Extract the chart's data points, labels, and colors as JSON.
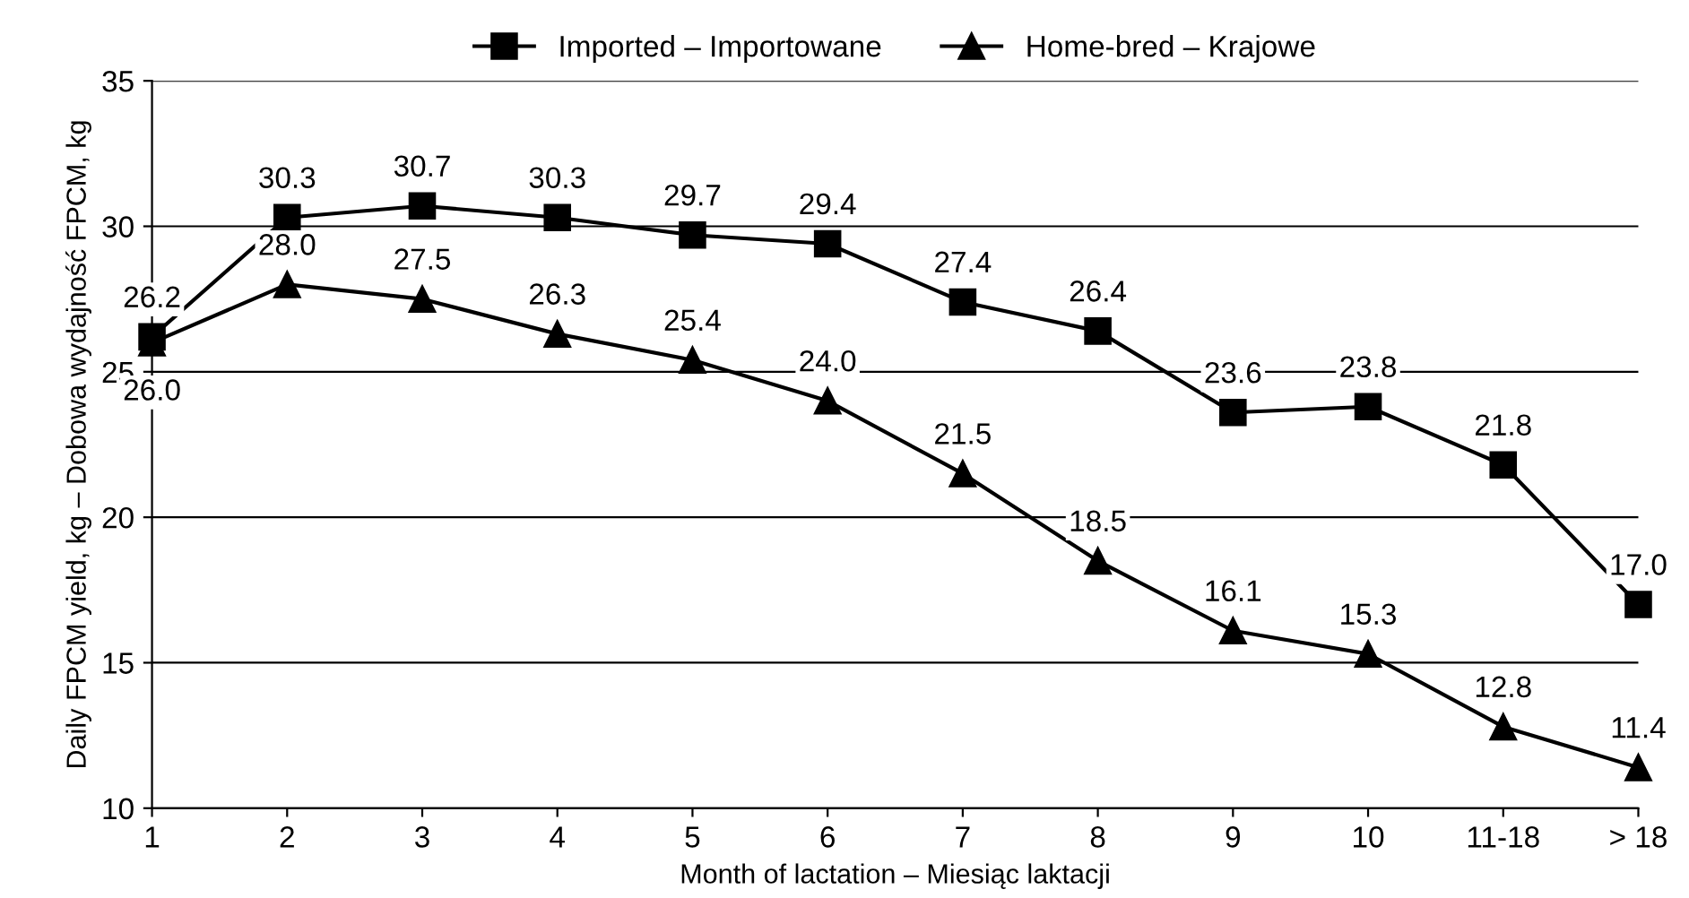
{
  "chart_data": {
    "type": "line",
    "xlabel": "Month of lactation – Miesiąc laktacji",
    "ylabel": "Daily FPCM yield, kg – Dobowa wydajność FPCM, kg",
    "categories": [
      "1",
      "2",
      "3",
      "4",
      "5",
      "6",
      "7",
      "8",
      "9",
      "10",
      "11-18",
      "> 18"
    ],
    "series": [
      {
        "name": "Imported – Importowane",
        "color": "#000000",
        "marker": "square",
        "values": [
          26.2,
          30.3,
          30.7,
          30.3,
          29.7,
          29.4,
          27.4,
          26.4,
          23.6,
          23.8,
          21.8,
          17.0
        ],
        "value_labels": [
          "26.2",
          "30.3",
          "30.7",
          "30.3",
          "29.7",
          "29.4",
          "27.4",
          "26.4",
          "23.6",
          "23.8",
          "21.8",
          "17.0"
        ]
      },
      {
        "name": "Home-bred – Krajowe",
        "color": "#000000",
        "marker": "triangle",
        "values": [
          26.0,
          28.0,
          27.5,
          26.3,
          25.4,
          24.0,
          21.5,
          18.5,
          16.1,
          15.3,
          12.8,
          11.4
        ],
        "value_labels": [
          "26.0",
          "28.0",
          "27.5",
          "26.3",
          "25.4",
          "24.0",
          "21.5",
          "18.5",
          "16.1",
          "15.3",
          "12.8",
          "11.4"
        ]
      }
    ],
    "ylim": [
      10,
      35
    ],
    "yticks": [
      10,
      15,
      20,
      25,
      30,
      35
    ],
    "grid": "y",
    "legend": "top",
    "line_style": "solid"
  }
}
